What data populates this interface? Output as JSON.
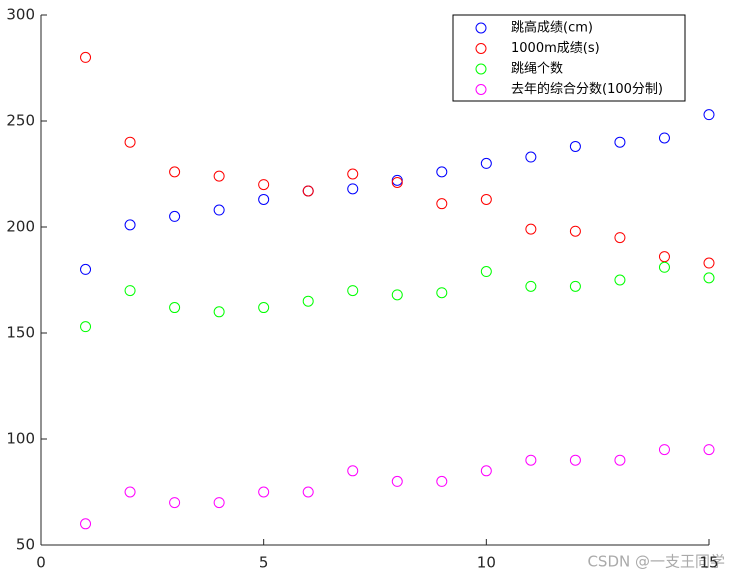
{
  "chart_data": {
    "type": "scatter",
    "x": [
      1,
      2,
      3,
      4,
      5,
      6,
      7,
      8,
      9,
      10,
      11,
      12,
      13,
      14,
      15
    ],
    "series": [
      {
        "name": "跳高成绩(cm)",
        "color": "#0000ff",
        "values": [
          180,
          201,
          205,
          208,
          213,
          217,
          218,
          222,
          226,
          230,
          233,
          238,
          240,
          242,
          253
        ]
      },
      {
        "name": "1000m成绩(s)",
        "color": "#ff0000",
        "values": [
          280,
          240,
          226,
          224,
          220,
          217,
          225,
          221,
          211,
          213,
          199,
          198,
          195,
          186,
          183
        ]
      },
      {
        "name": "跳绳个数",
        "color": "#00ff00",
        "values": [
          153,
          170,
          162,
          160,
          162,
          165,
          170,
          168,
          169,
          179,
          172,
          172,
          175,
          181,
          176
        ]
      },
      {
        "name": "去年的综合分数(100分制)",
        "color": "#ff00ff",
        "values": [
          60,
          75,
          70,
          70,
          75,
          75,
          85,
          80,
          80,
          85,
          90,
          90,
          90,
          95,
          95
        ]
      }
    ],
    "xlim": [
      0,
      15
    ],
    "xticks": [
      0,
      5,
      10,
      15
    ],
    "ylim": [
      50,
      300
    ],
    "yticks": [
      50,
      100,
      150,
      200,
      250,
      300
    ],
    "grid": false,
    "legend": "upper-right",
    "watermark": "CSDN @一支王同学"
  }
}
